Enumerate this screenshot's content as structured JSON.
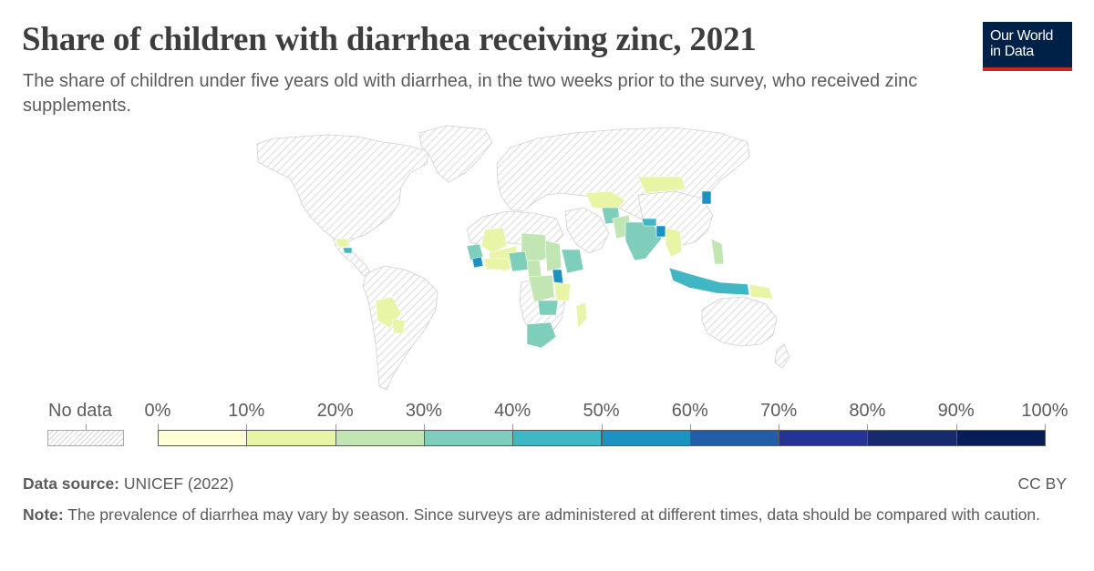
{
  "header": {
    "title": "Share of children with diarrhea receiving zinc, 2021",
    "subtitle": "The share of children under five years old with diarrhea, in the two weeks prior to the survey, who received zinc supplements."
  },
  "logo": {
    "line1": "Our World",
    "line2": "in Data"
  },
  "legend": {
    "no_data_label": "No data",
    "ticks": [
      "0%",
      "10%",
      "20%",
      "30%",
      "40%",
      "50%",
      "60%",
      "70%",
      "80%",
      "90%",
      "100%"
    ],
    "bins": [
      {
        "range": "0–10%",
        "color": "#ffffd5"
      },
      {
        "range": "10–20%",
        "color": "#e8f5a7"
      },
      {
        "range": "20–30%",
        "color": "#c2e5b4"
      },
      {
        "range": "30–40%",
        "color": "#7fcdbb"
      },
      {
        "range": "40–50%",
        "color": "#41b6c4"
      },
      {
        "range": "50–60%",
        "color": "#1d91c0"
      },
      {
        "range": "60–70%",
        "color": "#225ea8"
      },
      {
        "range": "70–80%",
        "color": "#253494"
      },
      {
        "range": "80–90%",
        "color": "#172a6d"
      },
      {
        "range": "90–100%",
        "color": "#081d58"
      }
    ],
    "no_data_color": "#e6e6e6"
  },
  "footer": {
    "source_label": "Data source:",
    "source_text": "UNICEF (2022)",
    "license": "CC BY",
    "note_label": "Note:",
    "note_text": "The prevalence of diarrhea may vary by season. Since surveys are administered at different times, data should be compared with caution."
  },
  "colors": {
    "text": "#5b5b5b",
    "title": "#3d3d3d",
    "logo_bg": "#002147",
    "logo_accent": "#ce261e"
  }
}
